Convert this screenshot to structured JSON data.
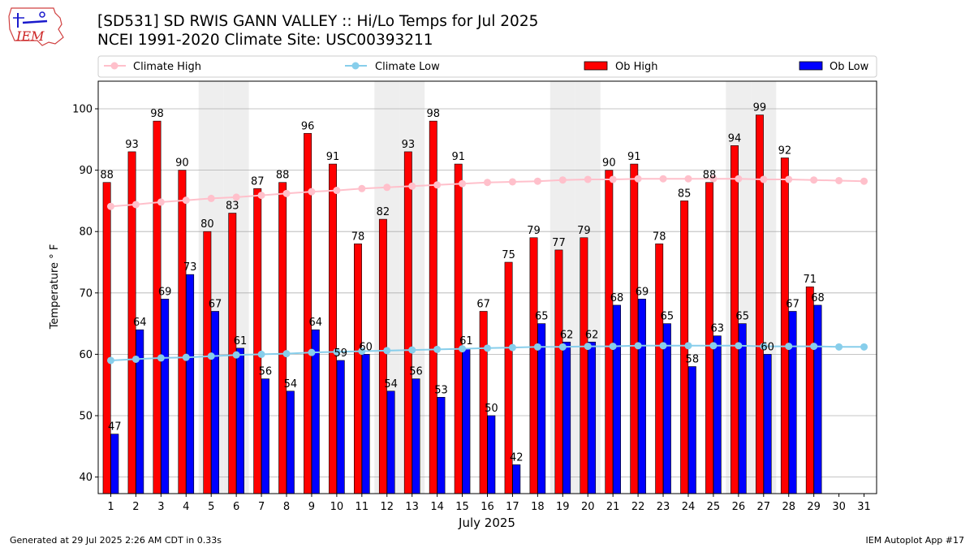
{
  "header": {
    "logo_text": "IEM",
    "title_line1": "[SD531] SD RWIS GANN VALLEY :: Hi/Lo Temps for Jul 2025",
    "title_line2": "NCEI 1991-2020 Climate Site: USC00393211"
  },
  "footer": {
    "generated": "Generated at 29 Jul 2025 2:26 AM CDT in 0.33s",
    "app": "IEM Autoplot App #17"
  },
  "colors": {
    "ob_high": "#ff0000",
    "ob_low": "#0000ff",
    "climate_high": "#ffc0cb",
    "climate_low": "#87ceeb",
    "weekend_shade": "#eeeeee",
    "grid": "#b0b0b0"
  },
  "chart_data": {
    "type": "bar",
    "xlabel": "July 2025",
    "ylabel": "Temperature ° F",
    "ylim": [
      37.3,
      104.5
    ],
    "yticks": [
      40,
      50,
      60,
      70,
      80,
      90,
      100
    ],
    "grid": true,
    "legend_position": "top",
    "categories": [
      "1",
      "2",
      "3",
      "4",
      "5",
      "6",
      "7",
      "8",
      "9",
      "10",
      "11",
      "12",
      "13",
      "14",
      "15",
      "16",
      "17",
      "18",
      "19",
      "20",
      "21",
      "22",
      "23",
      "24",
      "25",
      "26",
      "27",
      "28",
      "29",
      "30",
      "31"
    ],
    "shaded_days": [
      5,
      6,
      12,
      13,
      19,
      20,
      26,
      27
    ],
    "series": [
      {
        "name": "Climate High",
        "kind": "line",
        "values": [
          84.1,
          84.4,
          84.8,
          85.1,
          85.4,
          85.6,
          85.9,
          86.2,
          86.5,
          86.7,
          87.0,
          87.2,
          87.4,
          87.6,
          87.8,
          88.0,
          88.1,
          88.2,
          88.4,
          88.5,
          88.5,
          88.6,
          88.6,
          88.6,
          88.6,
          88.6,
          88.5,
          88.5,
          88.4,
          88.3,
          88.2
        ]
      },
      {
        "name": "Climate Low",
        "kind": "line",
        "values": [
          59.0,
          59.2,
          59.4,
          59.5,
          59.7,
          59.9,
          60.0,
          60.1,
          60.3,
          60.4,
          60.5,
          60.6,
          60.7,
          60.8,
          60.9,
          61.0,
          61.1,
          61.2,
          61.2,
          61.3,
          61.3,
          61.4,
          61.4,
          61.4,
          61.4,
          61.4,
          61.3,
          61.3,
          61.3,
          61.2,
          61.2
        ]
      },
      {
        "name": "Ob High",
        "kind": "bar",
        "values": [
          88,
          93,
          98,
          90,
          80,
          83,
          87,
          88,
          96,
          91,
          78,
          82,
          93,
          98,
          91,
          67,
          75,
          79,
          77,
          79,
          90,
          91,
          78,
          85,
          88,
          94,
          99,
          92,
          71,
          null,
          null
        ]
      },
      {
        "name": "Ob Low",
        "kind": "bar",
        "values": [
          47,
          64,
          69,
          73,
          67,
          61,
          56,
          54,
          64,
          59,
          60,
          54,
          56,
          53,
          61,
          50,
          42,
          65,
          62,
          62,
          68,
          69,
          65,
          58,
          63,
          65,
          60,
          67,
          68,
          null,
          null
        ]
      }
    ]
  }
}
